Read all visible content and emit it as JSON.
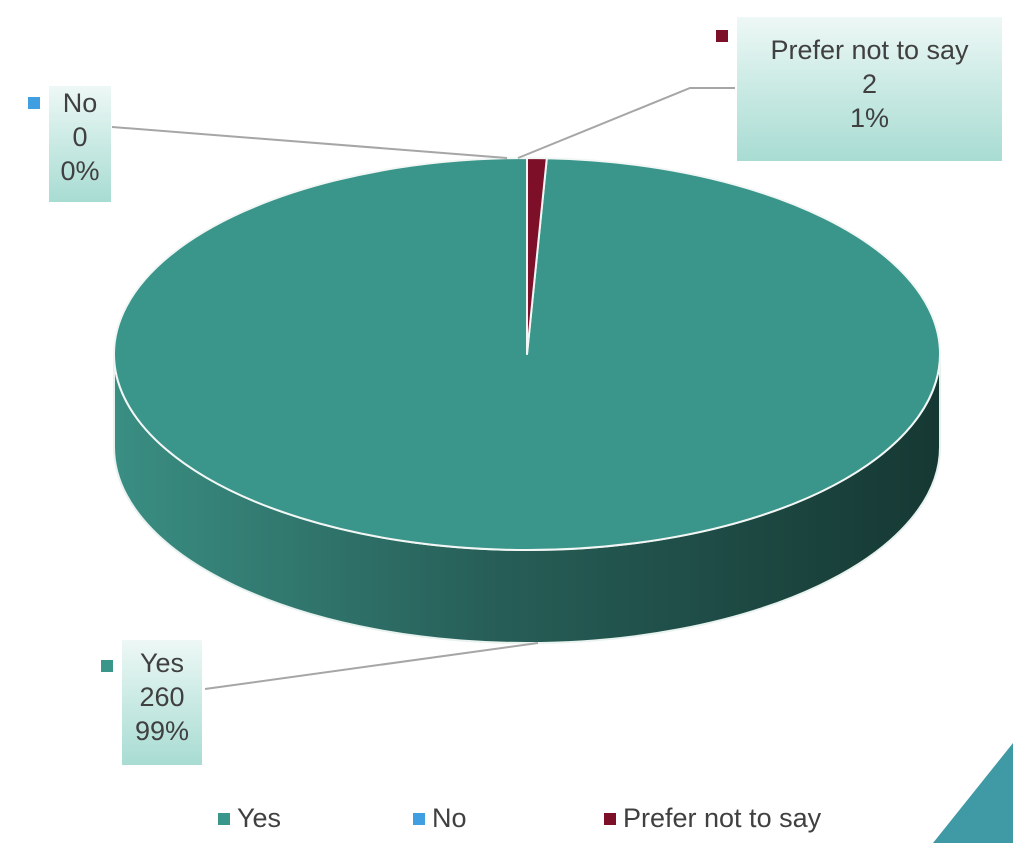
{
  "chart_data": {
    "type": "pie",
    "style": "3d",
    "title": "",
    "slices": [
      {
        "label": "Yes",
        "value": 260,
        "percent": "99%",
        "color": "#3a958a"
      },
      {
        "label": "No",
        "value": 0,
        "percent": "0%",
        "color": "#3f9fe0"
      },
      {
        "label": "Prefer not to say",
        "value": 2,
        "percent": "1%",
        "color": "#7d1028"
      }
    ],
    "legend_position": "bottom"
  },
  "labels": {
    "no": {
      "name": "No",
      "value": "0",
      "percent": "0%"
    },
    "prefer": {
      "name": "Prefer not to say",
      "value": "2",
      "percent": "1%"
    },
    "yes": {
      "name": "Yes",
      "value": "260",
      "percent": "99%"
    }
  },
  "legend": [
    {
      "label": "Yes",
      "color": "#3a958a"
    },
    {
      "label": "No",
      "color": "#3f9fe0"
    },
    {
      "label": "Prefer not to say",
      "color": "#7d1028"
    }
  ],
  "colors": {
    "accent": "#3f9aa6",
    "label_bg": "#a8dcd3",
    "text": "#404040"
  }
}
